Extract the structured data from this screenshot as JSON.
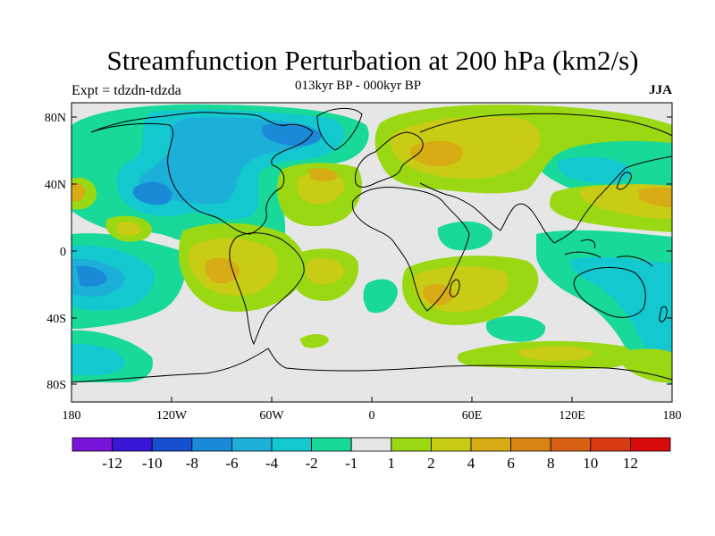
{
  "title": "Streamfunction Perturbation at 200 hPa (km2/s)",
  "subtitle": "013kyr BP - 000kyr BP",
  "left_label": "Expt = tdzdn-tdzda",
  "right_label": "JJA",
  "lat_ticks": [
    "80N",
    "40N",
    "0",
    "40S",
    "80S"
  ],
  "lon_ticks": [
    "180",
    "120W",
    "60W",
    "0",
    "60E",
    "120E",
    "180"
  ],
  "colorbar": {
    "colors": [
      "#7a14d8",
      "#3a16d8",
      "#1650d0",
      "#1a8ad8",
      "#1cb0d8",
      "#14c8d0",
      "#18d89a",
      "#e6e6e6",
      "#9ad814",
      "#c8cc14",
      "#d8ac14",
      "#d88414",
      "#d86014",
      "#d83a14",
      "#d80a0a"
    ],
    "labels": [
      "-12",
      "-10",
      "-8",
      "-6",
      "-4",
      "-2",
      "-1",
      "1",
      "2",
      "4",
      "6",
      "8",
      "10",
      "12"
    ]
  },
  "colors": {
    "background": "#e6e6e6",
    "green_pos": "#9ad814",
    "yellow_pos": "#c8cc14",
    "orange_pos": "#d8ac14",
    "green_neg": "#18d89a",
    "cyan_neg": "#14c8d0",
    "lightblue_neg": "#1cb0d8",
    "blue_neg": "#1a8ad8"
  }
}
